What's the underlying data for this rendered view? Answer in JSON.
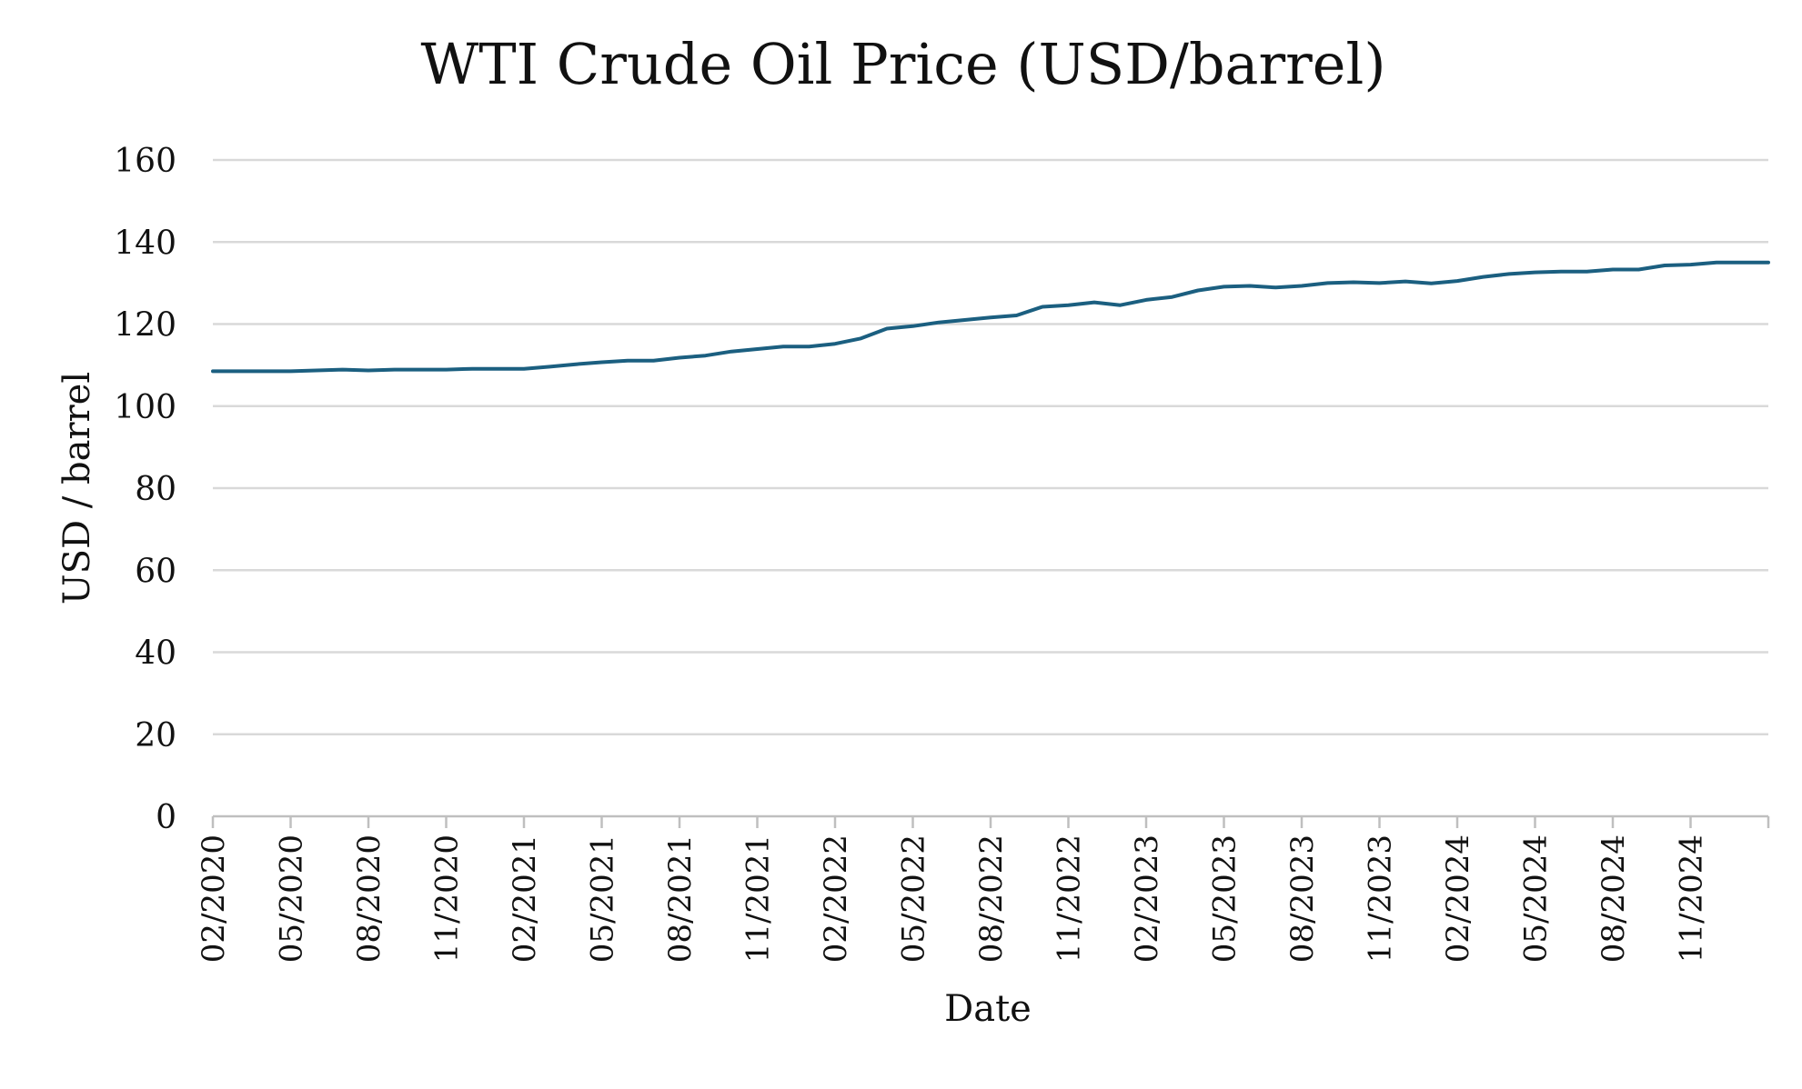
{
  "chart_data": {
    "type": "line",
    "title": "WTI Crude Oil Price (USD/barrel)",
    "xlabel": "Date",
    "ylabel": "USD / barrel",
    "ylim": [
      0,
      160
    ],
    "yticks": [
      0,
      20,
      40,
      60,
      80,
      100,
      120,
      140,
      160
    ],
    "xticks": [
      "02/2020",
      "05/2020",
      "08/2020",
      "11/2020",
      "02/2021",
      "05/2021",
      "08/2021",
      "11/2021",
      "02/2022",
      "05/2022",
      "08/2022",
      "11/2022",
      "02/2023",
      "05/2023",
      "08/2023",
      "11/2023",
      "02/2024",
      "05/2024",
      "08/2024",
      "11/2024"
    ],
    "grid": true,
    "legend": "none",
    "x": [
      "2020-02",
      "2020-03",
      "2020-04",
      "2020-05",
      "2020-06",
      "2020-07",
      "2020-08",
      "2020-09",
      "2020-10",
      "2020-11",
      "2020-12",
      "2021-01",
      "2021-02",
      "2021-03",
      "2021-04",
      "2021-05",
      "2021-06",
      "2021-07",
      "2021-08",
      "2021-09",
      "2021-10",
      "2021-11",
      "2021-12",
      "2022-01",
      "2022-02",
      "2022-03",
      "2022-04",
      "2022-05",
      "2022-06",
      "2022-07",
      "2022-08",
      "2022-09",
      "2022-10",
      "2022-11",
      "2022-12",
      "2023-01",
      "2023-02",
      "2023-03",
      "2023-04",
      "2023-05",
      "2023-06",
      "2023-07",
      "2023-08",
      "2023-09",
      "2023-10",
      "2023-11",
      "2023-12",
      "2024-01",
      "2024-02",
      "2024-03",
      "2024-04",
      "2024-05",
      "2024-06",
      "2024-07",
      "2024-08",
      "2024-09",
      "2024-10",
      "2024-11",
      "2024-12",
      "2025-01",
      "2025-02"
    ],
    "series": [
      {
        "color": "#1b5f80",
        "values": [
          108.5,
          108.5,
          108.5,
          108.5,
          108.7,
          108.9,
          108.7,
          108.9,
          108.9,
          108.9,
          109.1,
          109.1,
          109.1,
          109.6,
          110.2,
          110.7,
          111.1,
          111.1,
          111.8,
          112.3,
          113.3,
          113.9,
          114.5,
          114.5,
          115.2,
          116.5,
          118.9,
          119.5,
          120.4,
          121.0,
          121.6,
          122.1,
          124.2,
          124.6,
          125.3,
          124.6,
          125.9,
          126.6,
          128.2,
          129.1,
          129.3,
          128.9,
          129.3,
          130.0,
          130.2,
          130.0,
          130.4,
          129.9,
          130.5,
          131.5,
          132.2,
          132.6,
          132.8,
          132.8,
          133.3,
          133.3,
          134.3,
          134.5,
          135.0,
          135.0,
          135.0
        ]
      }
    ]
  }
}
